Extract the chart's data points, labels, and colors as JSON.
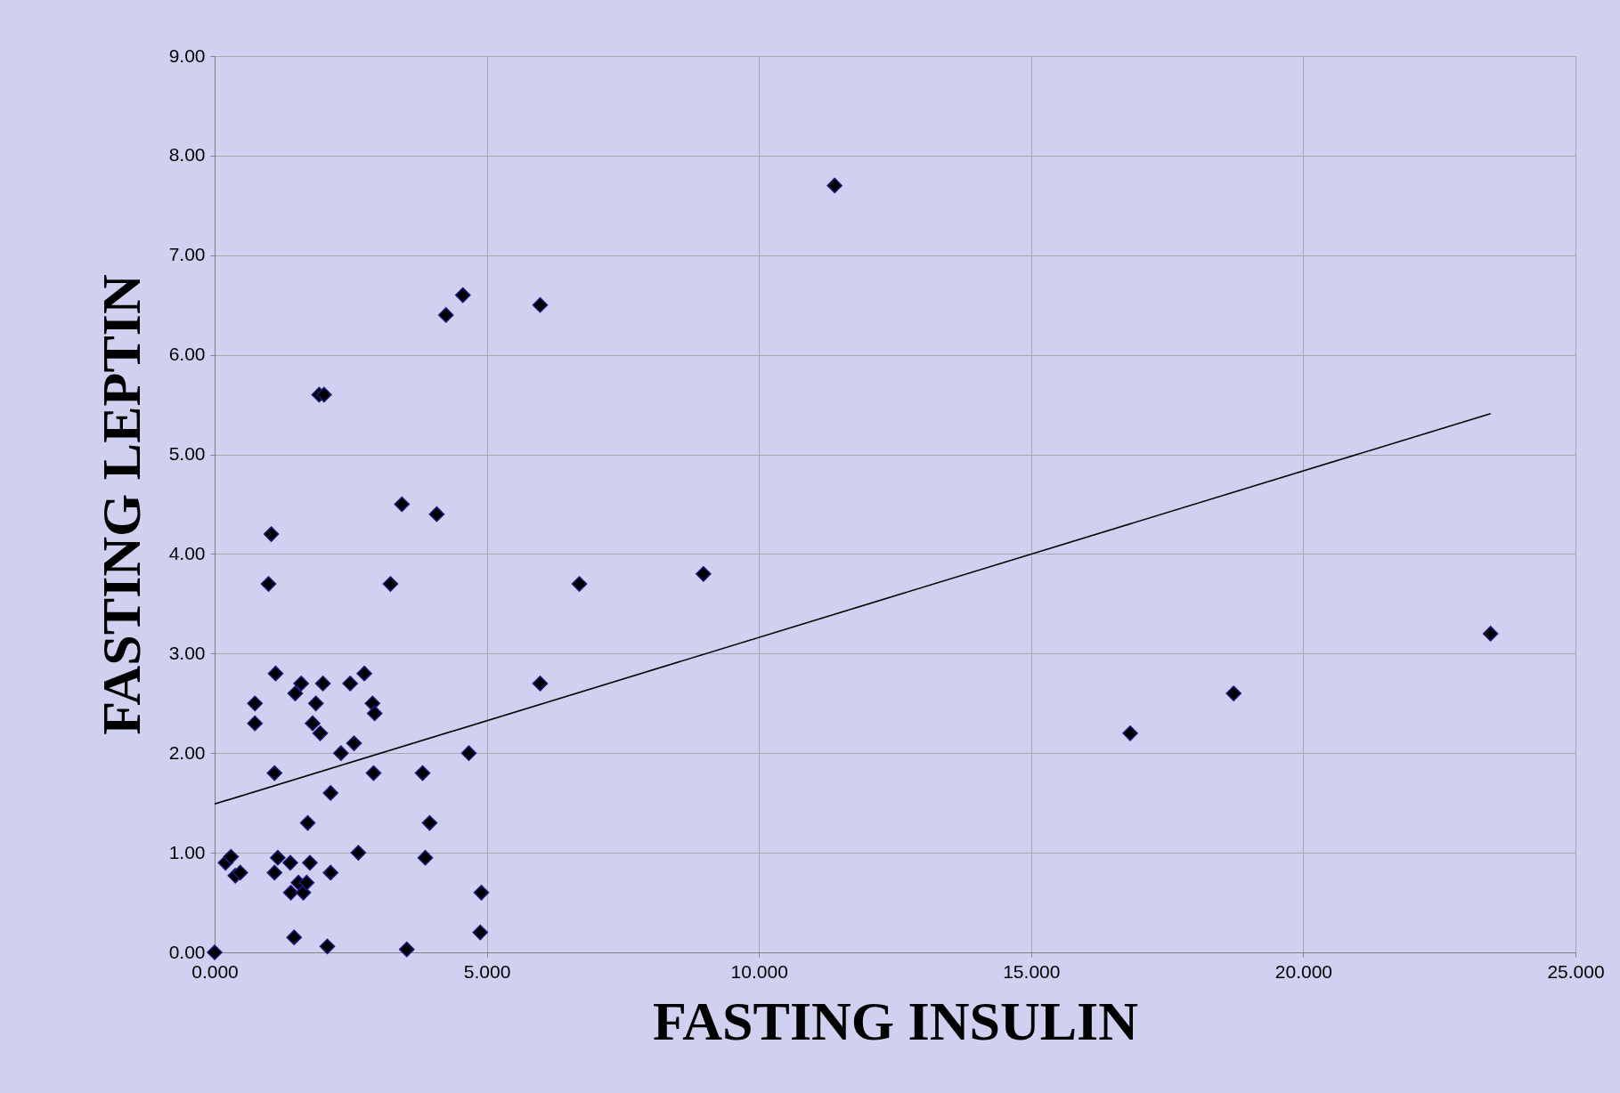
{
  "chart_data": {
    "type": "scatter",
    "xlabel": "FASTING INSULIN",
    "ylabel": "FASTING LEPTIN",
    "xlim": [
      0,
      25
    ],
    "ylim": [
      0,
      9
    ],
    "xticks": [
      {
        "value": 0,
        "label": "0.000"
      },
      {
        "value": 5,
        "label": "5.000"
      },
      {
        "value": 10,
        "label": "10.000"
      },
      {
        "value": 15,
        "label": "15.000"
      },
      {
        "value": 20,
        "label": "20.000"
      },
      {
        "value": 25,
        "label": "25.000"
      }
    ],
    "yticks": [
      {
        "value": 0,
        "label": "0.00"
      },
      {
        "value": 1,
        "label": "1.00"
      },
      {
        "value": 2,
        "label": "2.00"
      },
      {
        "value": 3,
        "label": "3.00"
      },
      {
        "value": 4,
        "label": "4.00"
      },
      {
        "value": 5,
        "label": "5.00"
      },
      {
        "value": 6,
        "label": "6.00"
      },
      {
        "value": 7,
        "label": "7.00"
      },
      {
        "value": 8,
        "label": "8.00"
      },
      {
        "value": 9,
        "label": "9.00"
      }
    ],
    "grid": true,
    "series": [
      {
        "marker": "diamond",
        "color": "#000000",
        "x": [
          0,
          0.2,
          0.3,
          0.38,
          0.47,
          0.74,
          0.74,
          0.99,
          1.04,
          1.1,
          1.1,
          1.12,
          1.16,
          1.39,
          1.4,
          1.46,
          1.48,
          1.54,
          1.59,
          1.63,
          1.69,
          1.71,
          1.75,
          1.8,
          1.86,
          1.94,
          1.92,
          2.01,
          1.99,
          2.07,
          2.13,
          2.13,
          2.32,
          2.49,
          2.56,
          2.64,
          2.75,
          2.9,
          2.94,
          2.92,
          3.23,
          3.44,
          3.53,
          3.82,
          3.87,
          3.95,
          4.08,
          4.25,
          4.56,
          4.67,
          4.88,
          4.9,
          5.98,
          5.98,
          6.7,
          8.98,
          11.39,
          16.82,
          18.72,
          23.44
        ],
        "values": [
          0,
          0.9,
          0.96,
          0.77,
          0.8,
          2.5,
          2.3,
          3.7,
          4.2,
          1.8,
          0.8,
          2.8,
          0.95,
          0.9,
          0.6,
          0.15,
          2.6,
          0.7,
          2.7,
          0.6,
          0.7,
          1.3,
          0.9,
          2.3,
          2.5,
          2.2,
          5.6,
          5.6,
          2.7,
          0.06,
          1.6,
          0.8,
          2.0,
          2.7,
          2.1,
          1.0,
          2.8,
          2.5,
          2.4,
          1.8,
          3.7,
          4.5,
          0.03,
          1.8,
          0.95,
          1.3,
          4.4,
          6.4,
          6.6,
          2.0,
          0.2,
          0.6,
          6.5,
          2.7,
          3.7,
          3.8,
          7.7,
          2.2,
          2.6,
          3.2
        ]
      },
      {
        "type": "line",
        "marker": "none",
        "color": "#000000",
        "x": [
          0,
          23.44
        ],
        "values": [
          1.49,
          5.41
        ]
      }
    ]
  }
}
